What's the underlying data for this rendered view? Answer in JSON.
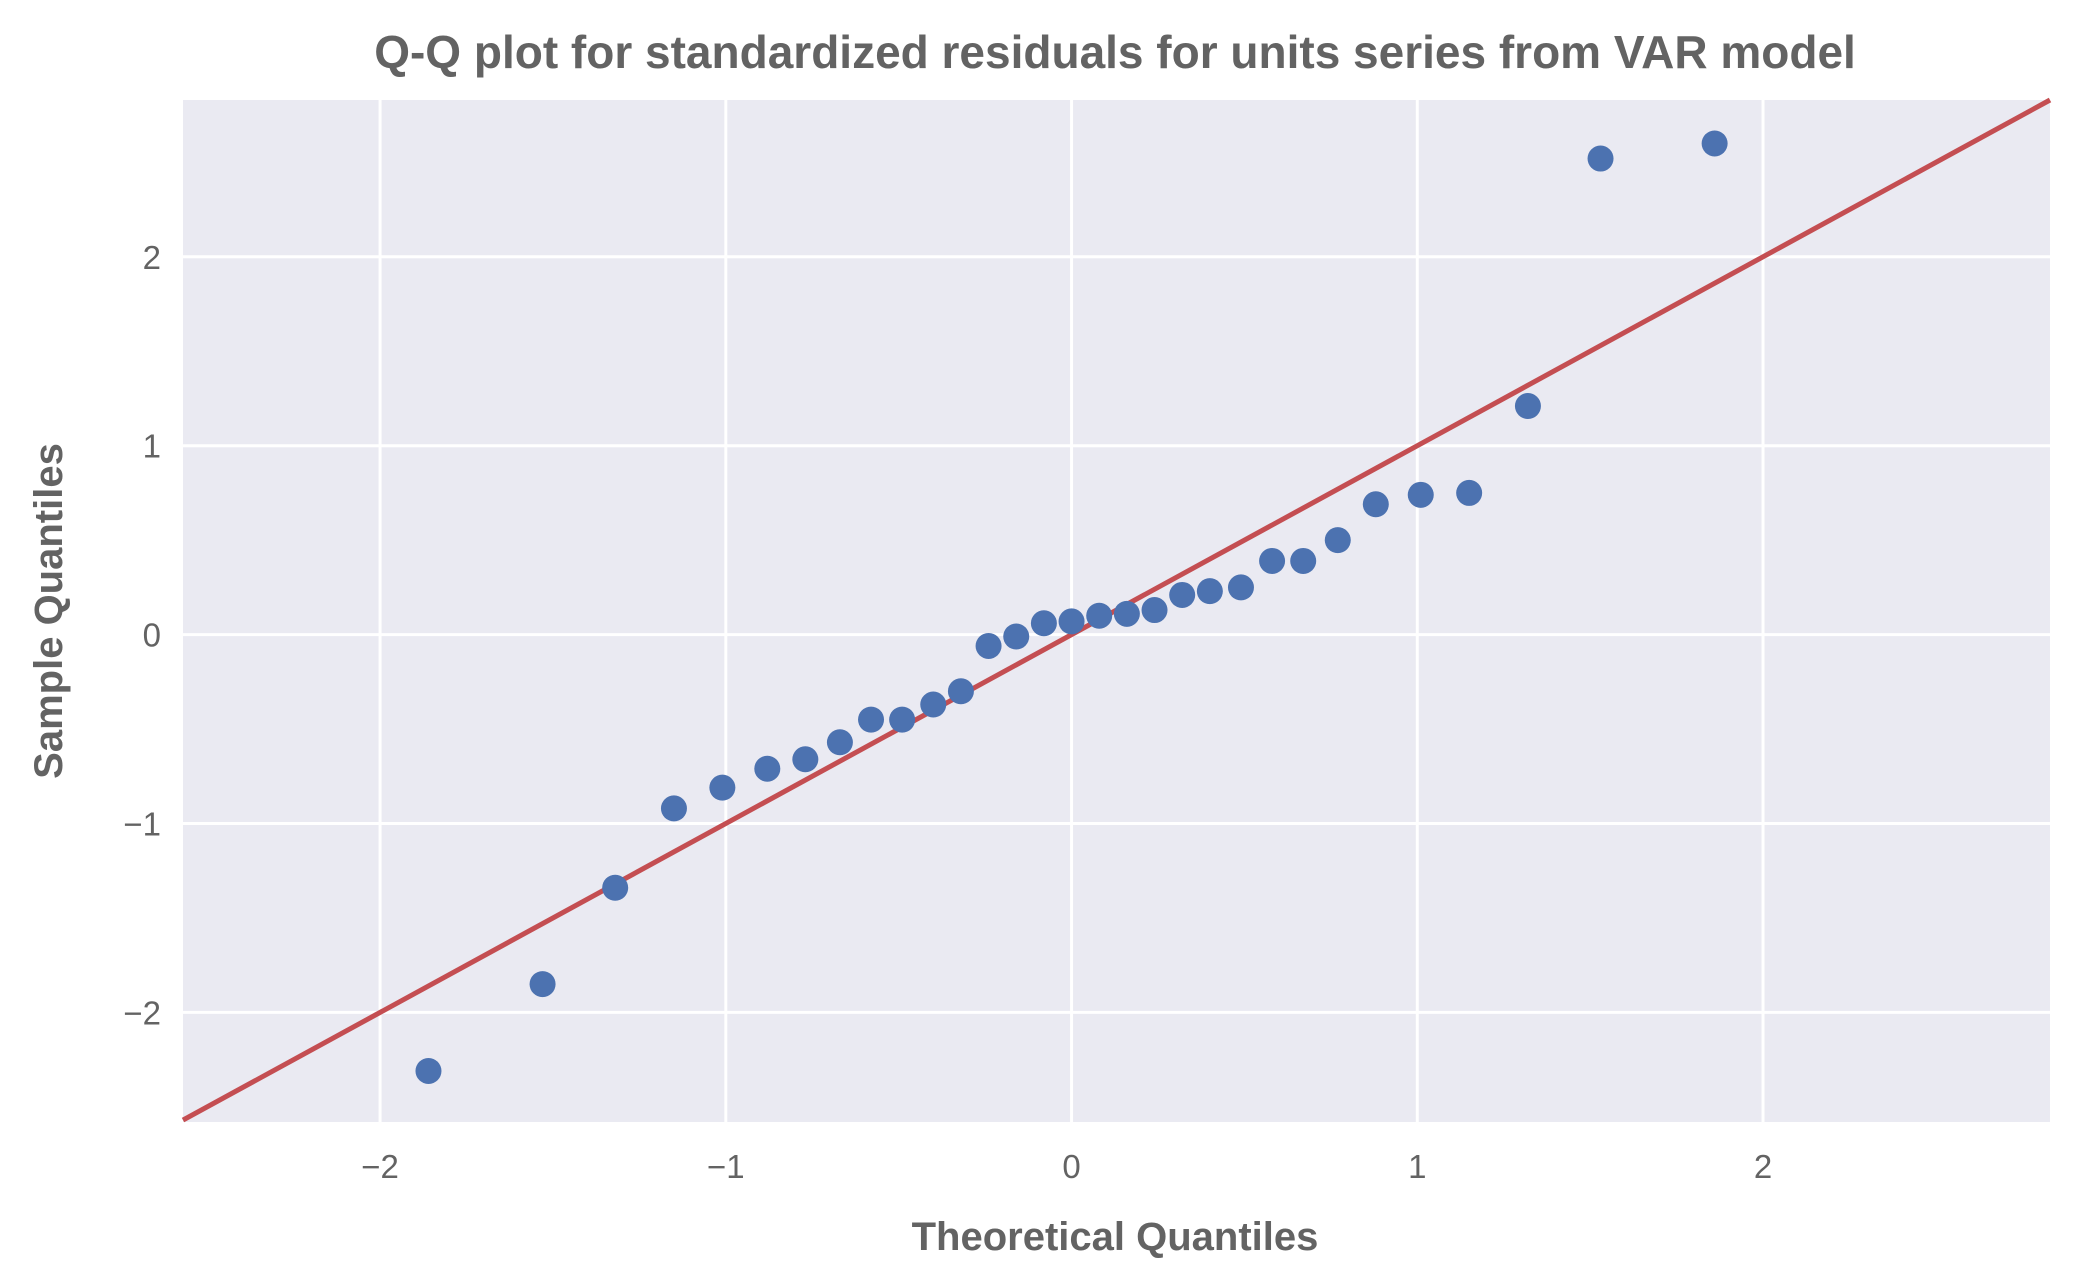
{
  "chart_data": {
    "type": "scatter",
    "title": "Q-Q plot for standardized residuals for units series from VAR model",
    "xlabel": "Theoretical Quantiles",
    "ylabel": "Sample Quantiles",
    "xlim": [
      -2.57,
      2.83
    ],
    "ylim": [
      -2.58,
      2.83
    ],
    "x_ticks": [
      -2,
      -1,
      0,
      1,
      2
    ],
    "y_ticks": [
      -2,
      -1,
      0,
      1,
      2
    ],
    "x_tick_labels": [
      "−2",
      "−1",
      "0",
      "1",
      "2"
    ],
    "y_tick_labels": [
      "−2",
      "−1",
      "0",
      "1",
      "2"
    ],
    "grid": true,
    "background_color": "#eaeaf2",
    "point_color": "#4c72b0",
    "line_color": "#c44e52",
    "reference_line": {
      "slope": 1,
      "intercept": 0
    },
    "points": [
      {
        "x": -1.86,
        "y": -2.31
      },
      {
        "x": -1.53,
        "y": -1.85
      },
      {
        "x": -1.32,
        "y": -1.34
      },
      {
        "x": -1.15,
        "y": -0.92
      },
      {
        "x": -1.01,
        "y": -0.81
      },
      {
        "x": -0.88,
        "y": -0.71
      },
      {
        "x": -0.77,
        "y": -0.66
      },
      {
        "x": -0.67,
        "y": -0.57
      },
      {
        "x": -0.58,
        "y": -0.45
      },
      {
        "x": -0.49,
        "y": -0.45
      },
      {
        "x": -0.4,
        "y": -0.37
      },
      {
        "x": -0.32,
        "y": -0.3
      },
      {
        "x": -0.24,
        "y": -0.06
      },
      {
        "x": -0.16,
        "y": -0.01
      },
      {
        "x": -0.08,
        "y": 0.06
      },
      {
        "x": 0.0,
        "y": 0.07
      },
      {
        "x": 0.08,
        "y": 0.1
      },
      {
        "x": 0.16,
        "y": 0.11
      },
      {
        "x": 0.24,
        "y": 0.13
      },
      {
        "x": 0.32,
        "y": 0.21
      },
      {
        "x": 0.4,
        "y": 0.23
      },
      {
        "x": 0.49,
        "y": 0.25
      },
      {
        "x": 0.58,
        "y": 0.39
      },
      {
        "x": 0.67,
        "y": 0.39
      },
      {
        "x": 0.77,
        "y": 0.5
      },
      {
        "x": 0.88,
        "y": 0.69
      },
      {
        "x": 1.01,
        "y": 0.74
      },
      {
        "x": 1.15,
        "y": 0.75
      },
      {
        "x": 1.32,
        "y": 1.21
      },
      {
        "x": 1.53,
        "y": 2.52
      },
      {
        "x": 1.86,
        "y": 2.6
      }
    ]
  }
}
